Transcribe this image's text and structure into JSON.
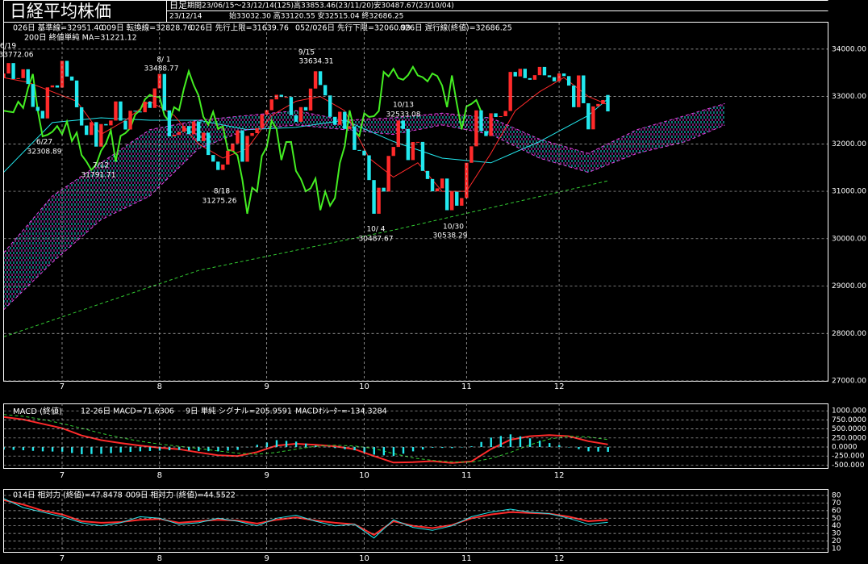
{
  "header": {
    "title": "日経平均株価",
    "period_type": "日足",
    "period": "期間23/06/15～23/12/14(125)高33853.46(23/11/20)安30487.67(23/10/04)",
    "date": "23/12/14",
    "ohlc": "始33032.30 高33120.55 安32515.04 終32686.25"
  },
  "chart_data": [
    {
      "type": "candlestick",
      "xlim": [
        0,
        169
      ],
      "ylim": [
        27000,
        34560
      ],
      "grid": true,
      "xticks": [
        {
          "value": 12,
          "label": "7"
        },
        {
          "value": 32,
          "label": "8"
        },
        {
          "value": 54,
          "label": "9"
        },
        {
          "value": 74,
          "label": "10"
        },
        {
          "value": 95,
          "label": "11"
        },
        {
          "value": 114,
          "label": "12"
        }
      ],
      "yticks": [
        {
          "value": 34000,
          "label": "34000.00"
        },
        {
          "value": 33000,
          "label": "33000.00"
        },
        {
          "value": 32000,
          "label": "32000.00"
        },
        {
          "value": 31000,
          "label": "31000.00"
        },
        {
          "value": 30000,
          "label": "30000.00"
        },
        {
          "value": 29000,
          "label": "29000.00"
        },
        {
          "value": 28000,
          "label": "28000.00"
        },
        {
          "value": 27000,
          "label": "27000.00"
        }
      ],
      "candles": {
        "up_color": "#ff2a2a",
        "down_color": "#22e8ee",
        "open": [
          33400,
          33485,
          33706,
          33370,
          33388,
          33575,
          33264,
          32781,
          32698,
          32538,
          33193,
          33234,
          33189,
          33753,
          33422,
          33338,
          32773,
          32388,
          32189,
          32459,
          31943,
          32419,
          32391,
          32493,
          32896,
          32490,
          32304,
          32700,
          32682,
          32668,
          32891,
          32759,
          33172,
          33476,
          32707,
          32159,
          32192,
          32254,
          32377,
          32204,
          32473,
          32059,
          32238,
          31766,
          31626,
          31450,
          31565,
          31856,
          32010,
          32287,
          31624,
          32169,
          32227,
          32333,
          32619,
          32710,
          32939,
          33036,
          32991,
          32991,
          32606,
          32467,
          32776,
          32706,
          33168,
          33533,
          33242,
          33023,
          32571,
          32402,
          32678,
          32315,
          32371,
          31872,
          31857,
          31759,
          31237,
          30526,
          31075,
          30994,
          31746,
          31936,
          32494,
          32315,
          31659,
          32040,
          32042,
          31430,
          31259,
          30999,
          31062,
          31269,
          30601,
          30991,
          30696,
          30858,
          31601,
          31949,
          32708,
          32271,
          32166,
          32646,
          32568,
          32585,
          32695,
          33519,
          33424,
          33585,
          33388,
          33354,
          33451,
          33625,
          33447,
          33408,
          33321,
          33486,
          33431,
          33231,
          32775,
          33445,
          32858,
          32307,
          32791,
          32843,
          33032.3
        ],
        "close": [
          33485,
          33706,
          33370,
          33388,
          33575,
          33264,
          32781,
          32698,
          32538,
          33193,
          33234,
          33189,
          33753,
          33422,
          33338,
          32773,
          32388,
          32189,
          32459,
          31943,
          32419,
          32391,
          32493,
          32896,
          32490,
          32304,
          32700,
          32682,
          32668,
          32891,
          32759,
          33172,
          33476,
          32707,
          32159,
          32192,
          32254,
          32377,
          32204,
          32473,
          32059,
          32238,
          31766,
          31626,
          31450,
          31565,
          31856,
          32010,
          32287,
          31624,
          32169,
          32227,
          32333,
          32619,
          32710,
          32939,
          33036,
          32991,
          32991,
          32606,
          32467,
          32776,
          32706,
          33168,
          33533,
          33242,
          33023,
          32571,
          32402,
          32678,
          32315,
          32371,
          31872,
          31857,
          31759,
          31237,
          30526,
          31075,
          30994,
          31746,
          31936,
          32494,
          32315,
          31659,
          32040,
          32042,
          31430,
          31259,
          30999,
          31062,
          31269,
          30601,
          30991,
          30696,
          30858,
          31601,
          31949,
          32708,
          32271,
          32166,
          32646,
          32568,
          32585,
          32695,
          33519,
          33424,
          33585,
          33388,
          33354,
          33451,
          33625,
          33447,
          33408,
          33321,
          33486,
          33431,
          33231,
          32775,
          33445,
          32858,
          32307,
          32791,
          32843,
          32926,
          32686.25
        ]
      },
      "series": [
        {
          "name": "026日 基準線=32951.40",
          "color": "#22e8ee",
          "width": 1,
          "x": [
            0,
            10,
            20,
            30,
            40,
            50,
            60,
            70,
            80,
            90,
            100,
            110,
            120,
            124
          ],
          "values": [
            31400,
            32450,
            32550,
            32500,
            32500,
            32300,
            32350,
            32500,
            32050,
            31700,
            31600,
            32050,
            32600,
            32951.4
          ]
        },
        {
          "name": "009日 転換線=32828.76",
          "color": "#ff2a2a",
          "width": 1,
          "x": [
            0,
            5,
            10,
            15,
            20,
            25,
            30,
            35,
            40,
            45,
            50,
            55,
            60,
            65,
            70,
            75,
            80,
            85,
            90,
            95,
            100,
            105,
            110,
            115,
            120,
            124
          ],
          "values": [
            33400,
            33300,
            33100,
            32900,
            32200,
            32500,
            32900,
            32600,
            32000,
            31700,
            31900,
            32600,
            32900,
            33000,
            32700,
            31700,
            31300,
            31600,
            31000,
            31000,
            31800,
            32700,
            33100,
            33400,
            33000,
            32828.76
          ]
        },
        {
          "name": "026日 先行上限=31639.76",
          "color": "#e040e0",
          "width": 1,
          "dash": true,
          "cloud": true,
          "x": [
            0,
            10,
            20,
            30,
            40,
            50,
            60,
            70,
            80,
            90,
            100,
            110,
            120,
            130,
            140,
            148
          ],
          "values": [
            29700,
            30900,
            31600,
            32300,
            32500,
            32600,
            32700,
            32500,
            32550,
            32650,
            32550,
            32100,
            31800,
            32300,
            32600,
            32850
          ]
        },
        {
          "name": "052/026日 先行下限=32060.99",
          "color": "#e040e0",
          "width": 1,
          "dash": true,
          "cloud": true,
          "x": [
            0,
            10,
            20,
            30,
            40,
            50,
            60,
            70,
            80,
            90,
            100,
            110,
            120,
            130,
            140,
            148
          ],
          "values": [
            28500,
            29500,
            30400,
            30900,
            31900,
            32300,
            32400,
            32300,
            32200,
            32400,
            32200,
            31700,
            31400,
            31800,
            32050,
            32400
          ]
        },
        {
          "name": "026日 遅行線(終値)=32686.25",
          "color": "#44ee22",
          "width": 2,
          "source": "close",
          "shift": 26
        },
        {
          "name": "200日 終値単純 MA=31221.12",
          "color": "#33cc33",
          "width": 1,
          "dash": true,
          "x": [
            0,
            40,
            80,
            124
          ],
          "values": [
            27930,
            29330,
            30180,
            31221.12
          ]
        }
      ],
      "annotations": [
        {
          "label": "6/19",
          "value": 33772.06,
          "color": "#ff2a2a"
        },
        {
          "label": "8/ 1",
          "value": 33488.77,
          "color": "#ff2a2a"
        },
        {
          "label": "9/15",
          "value": 33634.31,
          "color": "#ff2a2a"
        },
        {
          "label": "10/13",
          "value": 32533.08,
          "color": "#ff2a2a"
        },
        {
          "label": "6/27",
          "value": 32308.89,
          "color": "#22e8ee"
        },
        {
          "label": "7/12",
          "value": 31791.71,
          "color": "#22e8ee"
        },
        {
          "label": "8/18",
          "value": 31275.26,
          "color": "#22e8ee"
        },
        {
          "label": "10/ 4",
          "value": 30487.67,
          "color": "#22e8ee"
        },
        {
          "label": "10/30",
          "value": 30538.29,
          "color": "#22e8ee"
        }
      ]
    },
    {
      "type": "line",
      "title": "MACD (終値)",
      "xlim": [
        0,
        169
      ],
      "ylim": [
        -580,
        1205
      ],
      "grid": true,
      "xticks": [
        {
          "value": 12,
          "label": "7"
        },
        {
          "value": 32,
          "label": "8"
        },
        {
          "value": 54,
          "label": "9"
        },
        {
          "value": 74,
          "label": "10"
        },
        {
          "value": 95,
          "label": "11"
        },
        {
          "value": 114,
          "label": "12"
        }
      ],
      "yticks": [
        {
          "value": 1000,
          "label": "1000.000"
        },
        {
          "value": 750,
          "label": "750.0000"
        },
        {
          "value": 500,
          "label": "500.0000"
        },
        {
          "value": 250,
          "label": "250.0000"
        },
        {
          "value": 0,
          "label": "0.0000"
        },
        {
          "value": -250,
          "label": "-250.000"
        },
        {
          "value": -500,
          "label": "-500.000"
        }
      ],
      "series": [
        {
          "name": "12-26日 MACD=71.6306",
          "color": "#ff2a2a",
          "width": 2,
          "x": [
            0,
            4,
            8,
            12,
            16,
            20,
            24,
            28,
            32,
            36,
            40,
            44,
            48,
            52,
            56,
            60,
            64,
            68,
            72,
            76,
            80,
            84,
            88,
            92,
            96,
            100,
            104,
            108,
            112,
            116,
            120,
            124
          ],
          "values": [
            830,
            760,
            640,
            520,
            320,
            190,
            110,
            40,
            -20,
            -60,
            -150,
            -230,
            -250,
            -140,
            40,
            90,
            60,
            20,
            -60,
            -250,
            -430,
            -420,
            -390,
            -440,
            -400,
            -60,
            200,
            300,
            330,
            300,
            160,
            71.6306
          ]
        },
        {
          "name": "9日 単純 シグナル=205.9591",
          "color": "#33cc33",
          "width": 1,
          "dash": true,
          "x": [
            0,
            4,
            8,
            12,
            16,
            20,
            24,
            28,
            32,
            36,
            40,
            44,
            48,
            52,
            56,
            60,
            64,
            68,
            72,
            76,
            80,
            84,
            88,
            92,
            96,
            100,
            104,
            108,
            112,
            116,
            120,
            124
          ],
          "values": [
            900,
            850,
            760,
            650,
            520,
            380,
            260,
            160,
            80,
            20,
            -40,
            -110,
            -170,
            -200,
            -150,
            -60,
            20,
            50,
            30,
            -40,
            -180,
            -300,
            -370,
            -410,
            -420,
            -320,
            -150,
            60,
            220,
            300,
            280,
            205.9591
          ]
        },
        {
          "name": "MACDｵｼﾚｰﾀｰ=-134.3284",
          "color": "#22e8ee",
          "kind": "bar",
          "x": [
            0,
            2,
            4,
            6,
            8,
            10,
            12,
            14,
            16,
            18,
            20,
            22,
            24,
            26,
            28,
            30,
            32,
            34,
            36,
            38,
            40,
            42,
            44,
            46,
            48,
            50,
            52,
            54,
            56,
            58,
            60,
            62,
            64,
            66,
            68,
            70,
            72,
            74,
            76,
            78,
            80,
            82,
            84,
            86,
            88,
            90,
            92,
            94,
            96,
            98,
            100,
            102,
            104,
            106,
            108,
            110,
            112,
            114,
            116,
            118,
            120,
            122,
            124
          ],
          "values": [
            -70,
            -80,
            -90,
            -105,
            -120,
            -125,
            -130,
            -165,
            -200,
            -195,
            -190,
            -170,
            -150,
            -135,
            -120,
            -110,
            -100,
            -90,
            -80,
            -95,
            -110,
            -115,
            -120,
            -100,
            -80,
            -10,
            60,
            125,
            190,
            170,
            150,
            95,
            40,
            5,
            -30,
            -60,
            -90,
            -150,
            -210,
            -230,
            -250,
            -185,
            -120,
            -70,
            -20,
            -25,
            -30,
            -5,
            20,
            140,
            260,
            305,
            350,
            295,
            240,
            175,
            110,
            55,
            0,
            -60,
            -120,
            -127,
            -134.3284
          ]
        }
      ]
    },
    {
      "type": "line",
      "xlim": [
        0,
        169
      ],
      "ylim": [
        5.7,
        88.5
      ],
      "grid": true,
      "xticks": [
        {
          "value": 12,
          "label": "7"
        },
        {
          "value": 32,
          "label": "8"
        },
        {
          "value": 54,
          "label": "9"
        },
        {
          "value": 74,
          "label": "10"
        },
        {
          "value": 95,
          "label": "11"
        },
        {
          "value": 114,
          "label": "12"
        }
      ],
      "yticks": [
        80,
        70,
        60,
        50,
        40,
        30,
        20,
        10
      ],
      "series": [
        {
          "name": "014日 相対力 (終値)=47.8478",
          "color": "#ff2a2a",
          "width": 2,
          "x": [
            0,
            4,
            8,
            12,
            16,
            20,
            24,
            28,
            32,
            36,
            40,
            44,
            48,
            52,
            56,
            60,
            64,
            68,
            72,
            76,
            80,
            84,
            88,
            92,
            96,
            100,
            104,
            108,
            112,
            116,
            120,
            124
          ],
          "values": [
            74,
            68,
            60,
            55,
            46,
            44,
            45,
            48,
            49,
            44,
            46,
            48,
            47,
            43,
            48,
            51,
            47,
            44,
            42,
            28,
            46,
            40,
            37,
            41,
            50,
            55,
            58,
            57,
            56,
            52,
            46,
            47.8478
          ]
        },
        {
          "name": "009日 相対力 (終値)=44.5522",
          "color": "#22e8ee",
          "width": 1,
          "x": [
            0,
            4,
            8,
            12,
            16,
            20,
            24,
            28,
            32,
            36,
            40,
            44,
            48,
            52,
            56,
            60,
            64,
            68,
            72,
            76,
            80,
            84,
            88,
            92,
            96,
            100,
            104,
            108,
            112,
            116,
            120,
            124
          ],
          "values": [
            76,
            64,
            58,
            52,
            44,
            40,
            44,
            52,
            50,
            42,
            44,
            50,
            46,
            40,
            50,
            54,
            46,
            40,
            42,
            24,
            48,
            38,
            34,
            40,
            52,
            58,
            62,
            58,
            56,
            50,
            42,
            44.5522
          ]
        }
      ]
    }
  ]
}
